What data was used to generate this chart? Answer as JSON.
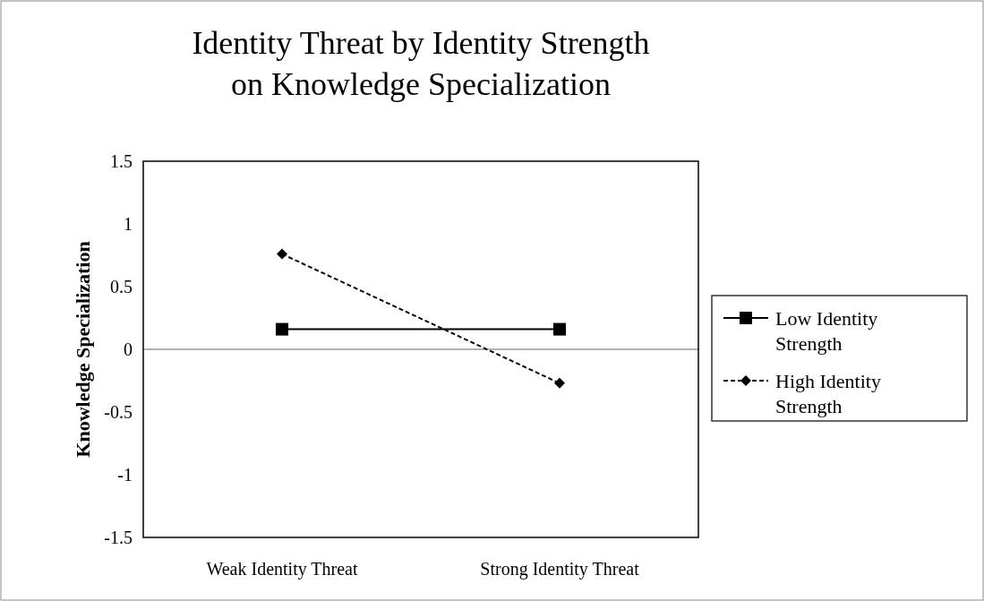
{
  "chart_data": {
    "type": "line",
    "title": "Identity Threat by Identity Strength\non Knowledge Specialization",
    "ylabel": "Knowledge Specialization",
    "categories": [
      "Weak Identity Threat",
      "Strong Identity Threat"
    ],
    "ylim": [
      -1.5,
      1.5
    ],
    "yticks": [
      -1.5,
      -1,
      -0.5,
      0,
      0.5,
      1,
      1.5
    ],
    "ref_lines": [
      {
        "axis": "y",
        "value": 0,
        "color": "#999999"
      }
    ],
    "legend": "right",
    "series": [
      {
        "name": "Low Identity\nStrength",
        "color": "#000000",
        "values": [
          0.16,
          0.16
        ],
        "marker": "square",
        "line_style": "solid"
      },
      {
        "name": "High Identity\nStrength",
        "color": "#000000",
        "values": [
          0.76,
          -0.27
        ],
        "marker": "diamond",
        "line_style": "dashed"
      }
    ]
  }
}
